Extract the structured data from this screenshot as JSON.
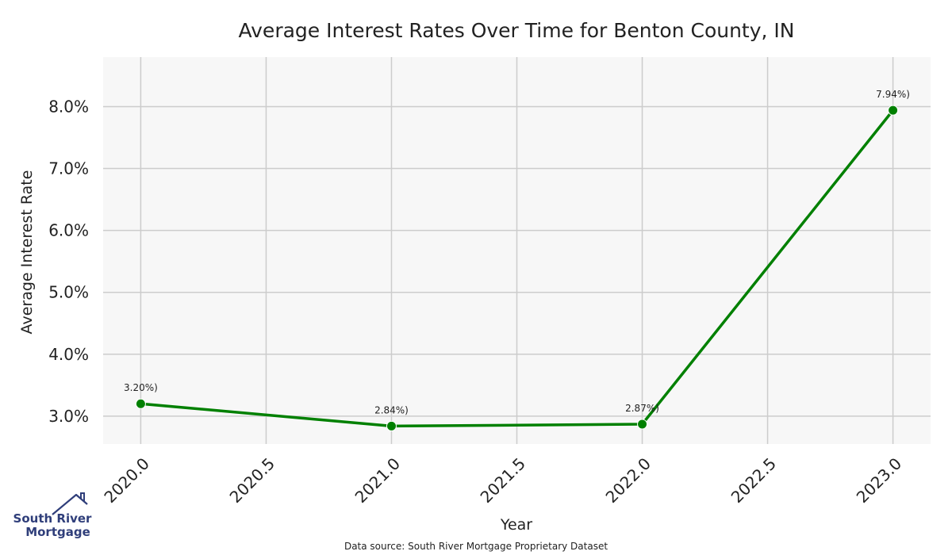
{
  "chart_data": {
    "type": "line",
    "title": "Average Interest Rates Over Time for Benton County, IN",
    "xlabel": "Year",
    "ylabel": "Average Interest Rate",
    "xlim": [
      2019.85,
      2023.15
    ],
    "ylim": [
      2.55,
      8.8
    ],
    "grid": true,
    "x": [
      2020.0,
      2021.0,
      2022.0,
      2023.0
    ],
    "series": [
      {
        "values": [
          3.2,
          2.84,
          2.87,
          7.94
        ],
        "color": "#008000",
        "data_labels": [
          "3.20%)",
          "2.84%)",
          "2.87%)",
          "7.94%)"
        ]
      }
    ],
    "x_ticks": [
      2020.0,
      2020.5,
      2021.0,
      2021.5,
      2022.0,
      2022.5,
      2023.0
    ],
    "x_tick_labels": [
      "2020.0",
      "2020.5",
      "2021.0",
      "2021.5",
      "2022.0",
      "2022.5",
      "2023.0"
    ],
    "y_ticks": [
      3.0,
      4.0,
      5.0,
      6.0,
      7.0,
      8.0
    ],
    "y_tick_labels": [
      "3.0%",
      "4.0%",
      "5.0%",
      "6.0%",
      "7.0%",
      "8.0%"
    ],
    "plot_background": "#f7f7f7",
    "grid_color": "#cccccc"
  },
  "footer": {
    "source": "Data source: South River Mortgage Proprietary Dataset"
  },
  "logo": {
    "line1": "South River",
    "line2": "Mortgage",
    "color": "#2f3e7a",
    "icon": "house-roof-icon"
  }
}
